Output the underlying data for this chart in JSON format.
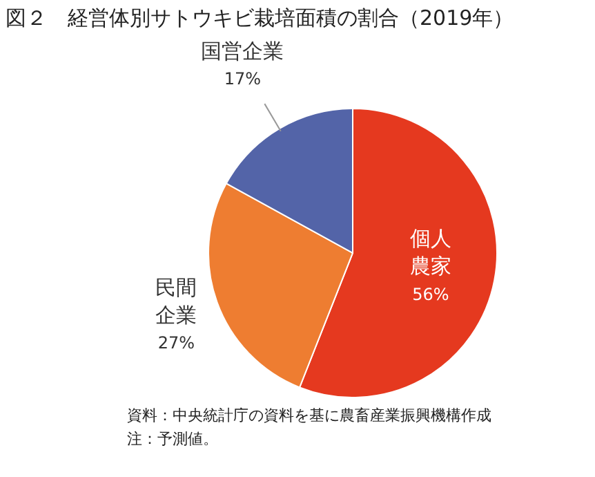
{
  "chart_data": {
    "type": "pie",
    "title": "図２　経営体別サトウキビ栽培面積の割合（2019年）",
    "categories": [
      "個人農家",
      "民間企業",
      "国営企業"
    ],
    "values": [
      56,
      27,
      17
    ],
    "colors": [
      "#e5391f",
      "#ee7d31",
      "#5364a8"
    ],
    "value_labels": [
      "56%",
      "27%",
      "17%"
    ],
    "legend": false,
    "annotations": [
      "資料：中央統計庁の資料を基に農畜産業振興機構作成",
      "注：予測値。"
    ]
  }
}
